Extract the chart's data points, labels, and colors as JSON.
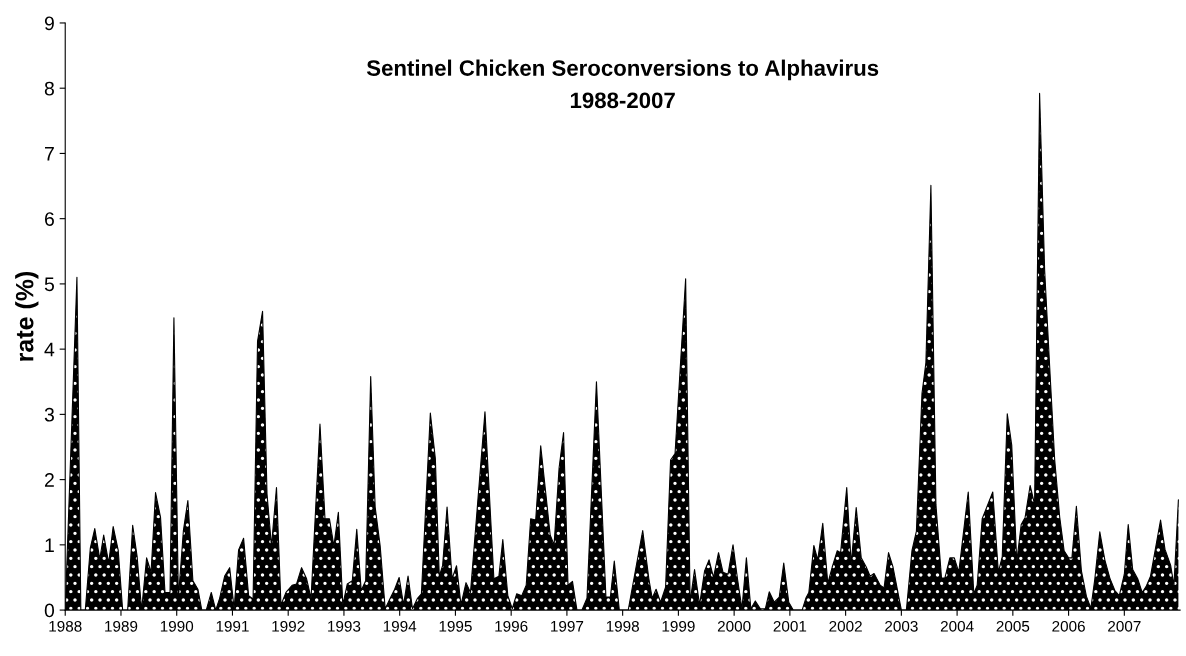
{
  "chart_data": {
    "type": "area",
    "title": "Sentinel Chicken Seroconversions to Alphavirus",
    "subtitle": "1988-2007",
    "ylabel": "rate (%)",
    "xlim": [
      1988,
      2008
    ],
    "xticks": [
      1988,
      1989,
      1990,
      1991,
      1992,
      1993,
      1994,
      1995,
      1996,
      1997,
      1998,
      1999,
      2000,
      2001,
      2002,
      2003,
      2004,
      2005,
      2006,
      2007
    ],
    "ylim": [
      0,
      9
    ],
    "yticks": [
      0,
      1,
      2,
      3,
      4,
      5,
      6,
      7,
      8,
      9
    ],
    "grid": false,
    "series": [
      {
        "color": "#000000",
        "x": [
          1988.0,
          1988.21,
          1988.28,
          1988.36,
          1988.45,
          1988.53,
          1988.62,
          1988.69,
          1988.78,
          1988.86,
          1988.95,
          1989.03,
          1989.12,
          1989.21,
          1989.29,
          1989.37,
          1989.46,
          1989.54,
          1989.62,
          1989.71,
          1989.79,
          1989.88,
          1989.95,
          1990.03,
          1990.12,
          1990.2,
          1990.29,
          1990.38,
          1990.45,
          1990.53,
          1990.62,
          1990.7,
          1990.77,
          1990.86,
          1990.95,
          1991.03,
          1991.11,
          1991.2,
          1991.29,
          1991.37,
          1991.45,
          1991.54,
          1991.62,
          1991.7,
          1991.79,
          1991.87,
          1991.96,
          1992.07,
          1992.15,
          1992.24,
          1992.33,
          1992.41,
          1992.57,
          1992.66,
          1992.74,
          1992.82,
          1992.9,
          1992.98,
          1993.06,
          1993.15,
          1993.23,
          1993.31,
          1993.39,
          1993.48,
          1993.56,
          1993.65,
          1993.74,
          1993.83,
          1993.91,
          1993.99,
          1994.07,
          1994.15,
          1994.23,
          1994.32,
          1994.39,
          1994.55,
          1994.64,
          1994.71,
          1994.77,
          1994.85,
          1994.94,
          1995.02,
          1995.1,
          1995.19,
          1995.27,
          1995.53,
          1995.69,
          1995.78,
          1995.85,
          1995.94,
          1996.02,
          1996.1,
          1996.19,
          1996.27,
          1996.35,
          1996.44,
          1996.53,
          1996.61,
          1996.7,
          1996.77,
          1996.86,
          1996.94,
          1997.02,
          1997.1,
          1997.18,
          1997.27,
          1997.36,
          1997.53,
          1997.7,
          1997.78,
          1997.85,
          1997.94,
          1998.1,
          1998.36,
          1998.47,
          1998.53,
          1998.6,
          1998.68,
          1998.77,
          1998.86,
          1998.94,
          1999.13,
          1999.21,
          1999.29,
          1999.38,
          1999.47,
          1999.55,
          1999.63,
          1999.72,
          1999.8,
          1999.89,
          1999.98,
          2000.06,
          2000.14,
          2000.22,
          2000.3,
          2000.38,
          2000.47,
          2000.56,
          2000.63,
          2000.72,
          2000.81,
          2000.89,
          2000.98,
          2001.06,
          2001.22,
          2001.29,
          2001.34,
          2001.43,
          2001.5,
          2001.59,
          2001.68,
          2001.76,
          2001.85,
          2001.91,
          2002.02,
          2002.1,
          2002.19,
          2002.28,
          2002.37,
          2002.44,
          2002.51,
          2002.62,
          2002.69,
          2002.77,
          2002.85,
          2003.0,
          2003.09,
          2003.19,
          2003.27,
          2003.37,
          2003.44,
          2003.53,
          2003.62,
          2003.72,
          2003.78,
          2003.87,
          2003.95,
          2004.03,
          2004.2,
          2004.3,
          2004.36,
          2004.45,
          2004.64,
          2004.74,
          2004.81,
          2004.9,
          2004.98,
          2005.07,
          2005.15,
          2005.22,
          2005.31,
          2005.39,
          2005.48,
          2005.57,
          2005.66,
          2005.75,
          2005.84,
          2005.92,
          2006.0,
          2006.06,
          2006.14,
          2006.23,
          2006.32,
          2006.4,
          2006.47,
          2006.56,
          2006.65,
          2006.74,
          2006.83,
          2006.91,
          2007.0,
          2007.07,
          2007.15,
          2007.24,
          2007.32,
          2007.39,
          2007.47,
          2007.65,
          2007.73,
          2007.83,
          2007.89,
          2007.97
        ],
        "values": [
          0,
          5.1,
          0,
          0,
          0.95,
          1.25,
          0.78,
          1.15,
          0.72,
          1.28,
          0.92,
          0,
          0,
          1.3,
          0.82,
          0,
          0.8,
          0.58,
          1.8,
          1.42,
          0.27,
          0.27,
          4.48,
          0.18,
          1.22,
          1.68,
          0.45,
          0.32,
          0,
          0,
          0.27,
          0,
          0.18,
          0.52,
          0.65,
          0.02,
          0.92,
          1.1,
          0.22,
          0.17,
          4.12,
          4.58,
          1.78,
          0.98,
          1.88,
          0.08,
          0.27,
          0.38,
          0.4,
          0.65,
          0.48,
          0.18,
          2.85,
          1.4,
          1.4,
          0.98,
          1.5,
          0.08,
          0.4,
          0.45,
          1.24,
          0.3,
          0.45,
          3.58,
          1.58,
          0.98,
          0.02,
          0.18,
          0.32,
          0.5,
          0.08,
          0.52,
          0.02,
          0.18,
          0.25,
          3.02,
          2.32,
          0.52,
          0.68,
          1.58,
          0.48,
          0.68,
          0.08,
          0.42,
          0.27,
          3.04,
          0.48,
          0.52,
          1.08,
          0.22,
          0.02,
          0.25,
          0.22,
          0.38,
          1.4,
          1.38,
          2.52,
          1.88,
          1.15,
          1.0,
          2.18,
          2.72,
          0.38,
          0.44,
          0,
          0,
          0.18,
          3.5,
          0.2,
          0.2,
          0.75,
          0,
          0,
          1.22,
          0.48,
          0.18,
          0.32,
          0.12,
          0.35,
          2.3,
          2.4,
          5.08,
          0.12,
          0.62,
          0.08,
          0.6,
          0.77,
          0.5,
          0.88,
          0.58,
          0.55,
          1.0,
          0.48,
          0.02,
          0.8,
          0.02,
          0.14,
          0.02,
          0.02,
          0.28,
          0.12,
          0.2,
          0.72,
          0.12,
          0,
          0,
          0.19,
          0.27,
          0.99,
          0.77,
          1.33,
          0.41,
          0.66,
          0.91,
          0.88,
          1.88,
          0.71,
          1.57,
          0.8,
          0.66,
          0.52,
          0.56,
          0.38,
          0.34,
          0.88,
          0.66,
          0,
          0,
          0.91,
          1.21,
          3.32,
          3.79,
          6.51,
          1.62,
          0.49,
          0.49,
          0.8,
          0.8,
          0.58,
          1.81,
          0.25,
          0.38,
          1.4,
          1.81,
          0.58,
          0.82,
          3.01,
          2.53,
          0.74,
          1.31,
          1.42,
          1.91,
          1.62,
          7.92,
          5.22,
          3.74,
          2.31,
          1.43,
          0.91,
          0.8,
          0.8,
          1.59,
          0.6,
          0.21,
          0.03,
          0.47,
          1.2,
          0.77,
          0.49,
          0.3,
          0.22,
          0.55,
          1.31,
          0.62,
          0.48,
          0.27,
          0.36,
          0.52,
          1.38,
          0.93,
          0.69,
          0.38,
          1.69
        ]
      }
    ]
  }
}
